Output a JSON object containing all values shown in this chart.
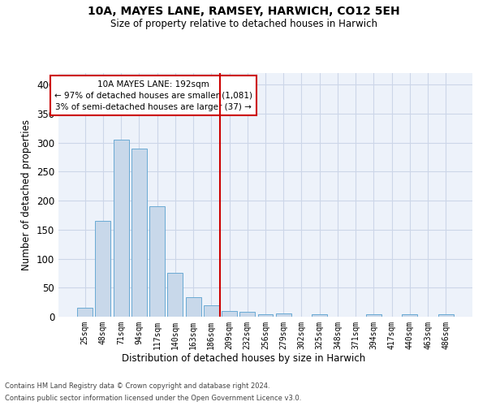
{
  "title1": "10A, MAYES LANE, RAMSEY, HARWICH, CO12 5EH",
  "title2": "Size of property relative to detached houses in Harwich",
  "xlabel": "Distribution of detached houses by size in Harwich",
  "ylabel": "Number of detached properties",
  "footer1": "Contains HM Land Registry data © Crown copyright and database right 2024.",
  "footer2": "Contains public sector information licensed under the Open Government Licence v3.0.",
  "annotation_line1": "10A MAYES LANE: 192sqm",
  "annotation_line2": "← 97% of detached houses are smaller (1,081)",
  "annotation_line3": "3% of semi-detached houses are larger (37) →",
  "vline_color": "#cc0000",
  "bar_color": "#c8d8ea",
  "bar_edge_color": "#6aaad4",
  "categories": [
    "25sqm",
    "48sqm",
    "71sqm",
    "94sqm",
    "117sqm",
    "140sqm",
    "163sqm",
    "186sqm",
    "209sqm",
    "232sqm",
    "256sqm",
    "279sqm",
    "302sqm",
    "325sqm",
    "348sqm",
    "371sqm",
    "394sqm",
    "417sqm",
    "440sqm",
    "463sqm",
    "486sqm"
  ],
  "values": [
    15,
    165,
    305,
    290,
    190,
    75,
    33,
    20,
    10,
    8,
    4,
    6,
    0,
    4,
    0,
    0,
    4,
    0,
    4,
    0,
    4
  ],
  "ylim": [
    0,
    420
  ],
  "yticks": [
    0,
    50,
    100,
    150,
    200,
    250,
    300,
    350,
    400
  ],
  "grid_color": "#ccd6e8",
  "bg_color": "#edf2fa",
  "vline_idx": 7,
  "fig_width": 6.0,
  "fig_height": 5.0,
  "dpi": 100
}
